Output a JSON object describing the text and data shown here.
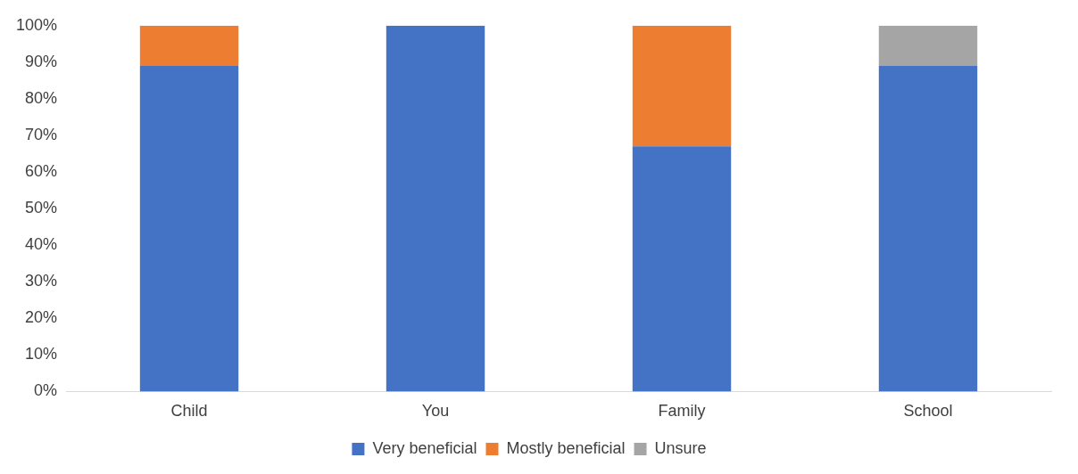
{
  "chart_data": {
    "type": "bar",
    "stacked": true,
    "categories": [
      "Child",
      "You",
      "Family",
      "School"
    ],
    "series": [
      {
        "name": "Very beneficial",
        "color": "#4472c4",
        "values": [
          89,
          100,
          67,
          89
        ]
      },
      {
        "name": "Mostly beneficial",
        "color": "#ed7d31",
        "values": [
          11,
          0,
          33,
          0
        ]
      },
      {
        "name": "Unsure",
        "color": "#a5a5a5",
        "values": [
          0,
          0,
          0,
          11
        ]
      }
    ],
    "ylim": [
      0,
      100
    ],
    "yticks": [
      {
        "value": 0,
        "label": "0%"
      },
      {
        "value": 10,
        "label": "10%"
      },
      {
        "value": 20,
        "label": "20%"
      },
      {
        "value": 30,
        "label": "30%"
      },
      {
        "value": 40,
        "label": "40%"
      },
      {
        "value": 50,
        "label": "50%"
      },
      {
        "value": 60,
        "label": "60%"
      },
      {
        "value": 70,
        "label": "70%"
      },
      {
        "value": 80,
        "label": "80%"
      },
      {
        "value": 90,
        "label": "90%"
      },
      {
        "value": 100,
        "label": "100%"
      }
    ],
    "grid": false,
    "legend": "bottom"
  }
}
